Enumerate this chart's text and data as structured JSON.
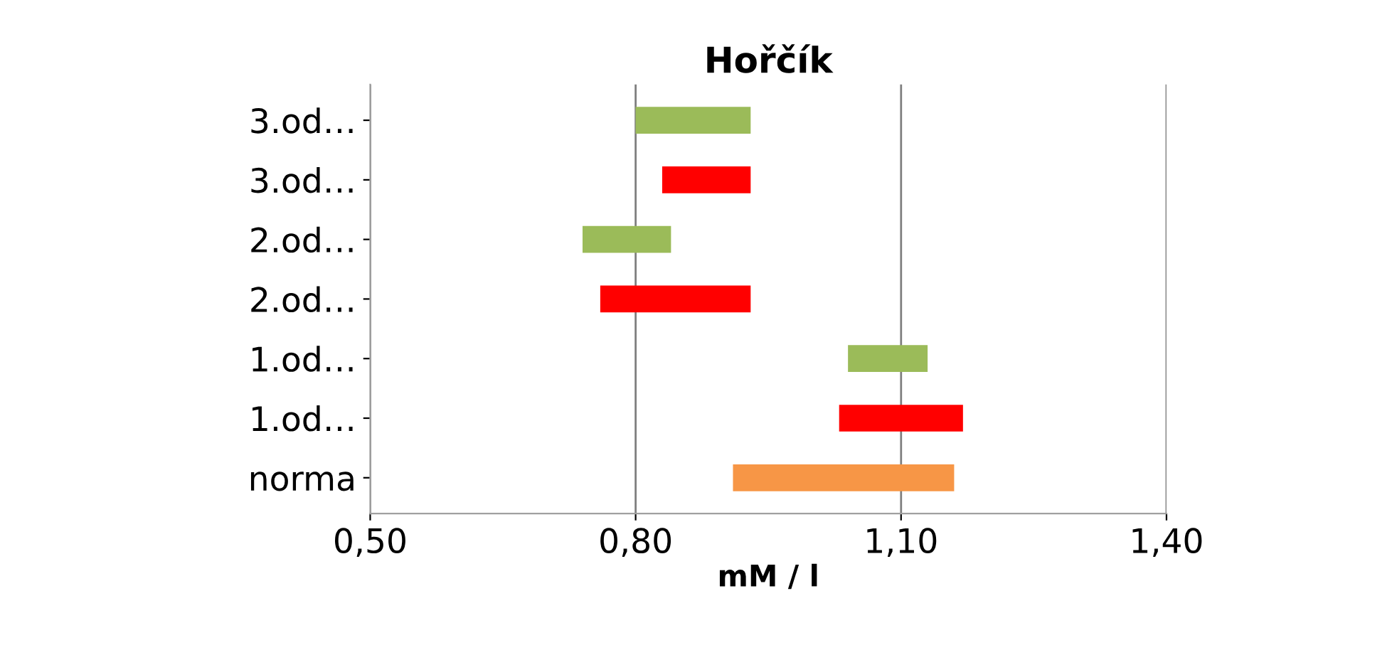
{
  "chart_data": {
    "type": "bar",
    "orientation": "horizontal",
    "title": "Hořčík",
    "xlabel": "mM / l",
    "categories": [
      "3.od…",
      "3.od…",
      "2.od…",
      "2.od…",
      "1.od…",
      "1.od…",
      "norma"
    ],
    "base": [
      0.8,
      0.83,
      0.74,
      0.76,
      1.04,
      1.03,
      0.91
    ],
    "values": [
      0.13,
      0.1,
      0.1,
      0.17,
      0.09,
      0.14,
      0.25
    ],
    "colors": [
      "#9bbb59",
      "#ff0000",
      "#9bbb59",
      "#ff0000",
      "#9bbb59",
      "#ff0000",
      "#f79646"
    ],
    "xlim": [
      0.5,
      1.4
    ],
    "xticks": [
      {
        "value": 0.5,
        "label": "0,50"
      },
      {
        "value": 0.8,
        "label": "0,80"
      },
      {
        "value": 1.1,
        "label": "1,10"
      },
      {
        "value": 1.4,
        "label": "1,40"
      }
    ],
    "grid": "x"
  }
}
